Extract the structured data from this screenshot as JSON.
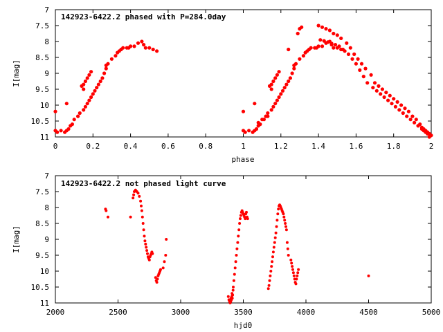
{
  "colors": {
    "series": "#ff0000",
    "axis": "#000000",
    "background": "#ffffff"
  },
  "chart_data": [
    {
      "type": "scatter",
      "title": "142923-6422.2 phased with P=284.0day",
      "xlabel": "phase",
      "ylabel": "I[mag]",
      "xlim": [
        0,
        2
      ],
      "ylim": [
        11,
        7
      ],
      "y_inverted": true,
      "grid": false,
      "xticks": [
        0,
        0.2,
        0.4,
        0.6,
        0.8,
        1,
        1.2,
        1.4,
        1.6,
        1.8,
        2
      ],
      "xtick_labels": [
        "0",
        "0.2",
        "0.4",
        "0.6",
        "0.8",
        "1",
        "1.2",
        "1.4",
        "1.6",
        "1.8",
        "2"
      ],
      "yticks": [
        7,
        7.5,
        8,
        8.5,
        9,
        9.5,
        10,
        10.5,
        11
      ],
      "ytick_labels": [
        "7",
        "7.5",
        "8",
        "8.5",
        "9",
        "9.5",
        "10",
        "10.5",
        "11"
      ],
      "x": [
        0.0,
        0.0,
        0.01,
        0.03,
        0.05,
        0.07,
        0.08,
        0.09,
        0.06,
        0.06,
        0.1,
        0.12,
        0.13,
        0.15,
        0.16,
        0.17,
        0.18,
        0.19,
        0.2,
        0.21,
        0.22,
        0.23,
        0.24,
        0.25,
        0.26,
        0.27,
        0.27,
        0.28,
        0.3,
        0.32,
        0.33,
        0.34,
        0.35,
        0.36,
        0.38,
        0.39,
        0.4,
        0.42,
        0.44,
        0.46,
        0.47,
        0.48,
        0.5,
        0.52,
        0.54,
        0.15,
        0.16,
        0.17,
        0.18,
        0.19,
        0.14,
        0.15,
        1.0,
        1.0,
        1.01,
        1.03,
        1.05,
        1.07,
        1.08,
        1.09,
        1.06,
        1.06,
        1.1,
        1.12,
        1.13,
        1.15,
        1.16,
        1.17,
        1.18,
        1.19,
        1.2,
        1.21,
        1.22,
        1.23,
        1.24,
        1.25,
        1.26,
        1.27,
        1.27,
        1.28,
        1.3,
        1.32,
        1.33,
        1.34,
        1.35,
        1.36,
        1.38,
        1.39,
        1.4,
        1.42,
        1.44,
        1.46,
        1.47,
        1.48,
        1.5,
        1.52,
        1.54,
        1.15,
        1.16,
        1.17,
        1.18,
        1.19,
        1.14,
        1.15,
        1.24,
        1.29,
        1.3,
        1.31,
        1.4,
        1.42,
        1.44,
        1.46,
        1.48,
        1.5,
        1.52,
        1.55,
        1.57,
        1.59,
        1.61,
        1.63,
        1.65,
        1.68,
        1.7,
        1.72,
        1.74,
        1.76,
        1.78,
        1.8,
        1.82,
        1.84,
        1.86,
        1.88,
        1.9,
        1.92,
        1.94,
        1.95,
        1.96,
        1.97,
        1.98,
        1.99,
        2.0,
        1.41,
        1.43,
        1.45,
        1.47,
        1.49,
        1.51,
        1.53,
        1.56,
        1.58,
        1.6,
        1.62,
        1.64,
        1.66,
        1.69,
        1.71,
        1.73,
        1.75,
        1.77,
        1.79,
        1.81,
        1.83,
        1.85,
        1.87,
        1.89,
        1.91,
        1.93,
        1.95,
        1.96,
        1.97,
        1.98,
        1.99,
        1.08,
        1.11,
        1.13
      ],
      "y": [
        10.8,
        10.2,
        10.85,
        10.8,
        10.85,
        10.75,
        10.65,
        10.6,
        10.8,
        9.95,
        10.45,
        10.35,
        10.25,
        10.15,
        10.05,
        9.95,
        9.85,
        9.75,
        9.65,
        9.55,
        9.45,
        9.35,
        9.25,
        9.15,
        9.0,
        8.85,
        8.75,
        8.7,
        8.55,
        8.45,
        8.35,
        8.3,
        8.25,
        8.2,
        8.2,
        8.2,
        8.15,
        8.15,
        8.05,
        8.0,
        8.1,
        8.2,
        8.2,
        8.25,
        8.3,
        9.35,
        9.25,
        9.15,
        9.05,
        8.95,
        9.4,
        9.5,
        10.8,
        10.2,
        10.85,
        10.8,
        10.85,
        10.75,
        10.65,
        10.6,
        10.8,
        9.95,
        10.45,
        10.35,
        10.25,
        10.15,
        10.05,
        9.95,
        9.85,
        9.75,
        9.65,
        9.55,
        9.45,
        9.35,
        9.25,
        9.15,
        9.0,
        8.85,
        8.75,
        8.7,
        8.55,
        8.45,
        8.35,
        8.3,
        8.25,
        8.2,
        8.2,
        8.2,
        8.15,
        8.15,
        8.05,
        8.0,
        8.1,
        8.2,
        8.2,
        8.25,
        8.3,
        9.35,
        9.25,
        9.15,
        9.05,
        8.95,
        9.4,
        9.5,
        8.25,
        7.75,
        7.6,
        7.55,
        7.5,
        7.55,
        7.6,
        7.65,
        7.75,
        7.8,
        7.9,
        8.05,
        8.2,
        8.4,
        8.55,
        8.7,
        8.85,
        9.05,
        9.3,
        9.4,
        9.5,
        9.6,
        9.7,
        9.8,
        9.9,
        10.0,
        10.1,
        10.2,
        10.35,
        10.45,
        10.6,
        10.7,
        10.75,
        10.8,
        10.85,
        10.9,
        10.95,
        7.95,
        7.98,
        8.02,
        8.06,
        8.1,
        8.15,
        8.25,
        8.4,
        8.55,
        8.7,
        8.9,
        9.1,
        9.3,
        9.45,
        9.55,
        9.65,
        9.75,
        9.85,
        9.95,
        10.05,
        10.15,
        10.25,
        10.35,
        10.45,
        10.55,
        10.65,
        10.75,
        10.8,
        10.85,
        10.9,
        11.0,
        10.55,
        10.45,
        10.35
      ]
    },
    {
      "type": "scatter",
      "title": "142923-6422.2 not phased light curve",
      "xlabel": "hjd0",
      "ylabel": "I[mag]",
      "xlim": [
        2000,
        5000
      ],
      "ylim": [
        11,
        7
      ],
      "y_inverted": true,
      "grid": false,
      "xticks": [
        2000,
        2500,
        3000,
        3500,
        4000,
        4500,
        5000
      ],
      "xtick_labels": [
        "2000",
        "2500",
        "3000",
        "3500",
        "4000",
        "4500",
        "5000"
      ],
      "yticks": [
        7,
        7.5,
        8,
        8.5,
        9,
        9.5,
        10,
        10.5,
        11
      ],
      "ytick_labels": [
        "7",
        "7.5",
        "8",
        "8.5",
        "9",
        "9.5",
        "10",
        "10.5",
        "11"
      ],
      "x": [
        2400,
        2405,
        2420,
        2600,
        2620,
        2625,
        2630,
        2640,
        2650,
        2660,
        2670,
        2680,
        2685,
        2690,
        2695,
        2700,
        2705,
        2710,
        2715,
        2720,
        2725,
        2730,
        2735,
        2740,
        2745,
        2750,
        2755,
        2760,
        2765,
        2770,
        2775,
        2800,
        2805,
        2810,
        2815,
        2820,
        2825,
        2830,
        2835,
        2840,
        2860,
        2870,
        2880,
        2885,
        3380,
        3385,
        3390,
        3395,
        3400,
        3402,
        3405,
        3408,
        3410,
        3412,
        3415,
        3418,
        3420,
        3425,
        3430,
        3435,
        3440,
        3445,
        3450,
        3455,
        3460,
        3465,
        3470,
        3475,
        3480,
        3485,
        3490,
        3495,
        3500,
        3505,
        3510,
        3515,
        3520,
        3525,
        3530,
        3535,
        3700,
        3705,
        3710,
        3715,
        3720,
        3725,
        3730,
        3735,
        3740,
        3745,
        3750,
        3755,
        3760,
        3765,
        3770,
        3775,
        3780,
        3785,
        3790,
        3795,
        3800,
        3805,
        3810,
        3815,
        3820,
        3825,
        3830,
        3835,
        3840,
        3845,
        3850,
        3855,
        3860,
        3880,
        3885,
        3890,
        3895,
        3900,
        3905,
        3910,
        3915,
        3920,
        3925,
        3930,
        3935,
        3940,
        4500
      ],
      "y": [
        8.05,
        8.1,
        8.3,
        8.3,
        7.7,
        7.6,
        7.5,
        7.45,
        7.5,
        7.55,
        7.65,
        7.8,
        7.95,
        8.1,
        8.3,
        8.5,
        8.7,
        8.9,
        9.05,
        9.15,
        9.25,
        9.35,
        9.45,
        9.55,
        9.6,
        9.65,
        9.55,
        9.5,
        9.45,
        9.4,
        9.45,
        10.2,
        10.3,
        10.35,
        10.25,
        10.15,
        10.1,
        10.05,
        10.0,
        9.95,
        9.9,
        9.7,
        9.5,
        9.0,
        10.8,
        10.9,
        10.95,
        11.0,
        10.95,
        10.85,
        10.9,
        10.8,
        10.7,
        10.85,
        10.75,
        10.6,
        10.5,
        10.3,
        10.1,
        9.9,
        9.7,
        9.5,
        9.3,
        9.1,
        8.9,
        8.7,
        8.5,
        8.35,
        8.25,
        8.15,
        8.1,
        8.15,
        8.2,
        8.25,
        8.3,
        8.35,
        8.2,
        8.15,
        8.3,
        8.35,
        10.55,
        10.45,
        10.3,
        10.15,
        10.0,
        9.85,
        9.7,
        9.55,
        9.4,
        9.25,
        9.1,
        8.95,
        8.8,
        8.6,
        8.4,
        8.2,
        8.05,
        7.95,
        7.92,
        7.95,
        8.0,
        8.05,
        8.1,
        8.15,
        8.2,
        8.3,
        8.4,
        8.5,
        8.6,
        8.7,
        9.1,
        9.3,
        9.5,
        9.65,
        9.75,
        9.85,
        9.95,
        10.05,
        10.15,
        10.25,
        10.35,
        10.4,
        10.25,
        10.15,
        10.05,
        9.95,
        10.15
      ]
    }
  ]
}
